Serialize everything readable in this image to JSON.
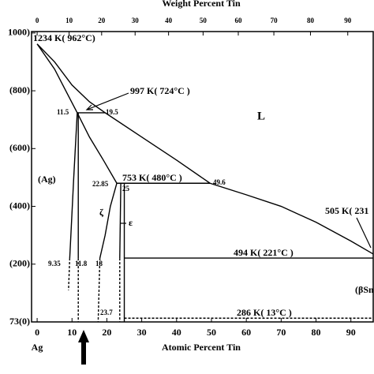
{
  "chart_data": {
    "type": "line",
    "title": "Weight Percent Tin",
    "xlabel": "Atomic Percent Tin",
    "xstart_label": "Ag",
    "xlim": [
      -1.6,
      96.4
    ],
    "ylim": [
      0,
      1005
    ],
    "xticks": [
      0,
      10,
      20,
      30,
      40,
      50,
      60,
      70,
      80,
      90
    ],
    "yticks": [
      {
        "value": 1000,
        "label": "1000)"
      },
      {
        "value": 800,
        "label": "(800)"
      },
      {
        "value": 600,
        "label": "(600)"
      },
      {
        "value": 400,
        "label": "(400)"
      },
      {
        "value": 200,
        "label": "(200)"
      },
      {
        "value": 0,
        "label": "73(0)"
      }
    ],
    "x2ticks": [
      {
        "value": 0,
        "label": "0"
      },
      {
        "value": 9.17,
        "label": "10"
      },
      {
        "value": 18.5,
        "label": "20"
      },
      {
        "value": 28.1,
        "label": "30"
      },
      {
        "value": 37.7,
        "label": "40"
      },
      {
        "value": 47.6,
        "label": "50"
      },
      {
        "value": 57.7,
        "label": "60"
      },
      {
        "value": 67.9,
        "label": "70"
      },
      {
        "value": 78.4,
        "label": "80"
      },
      {
        "value": 89.1,
        "label": "90"
      }
    ],
    "annotations": [
      "1234 K( 962°C)",
      "997 K( 724°C )",
      "19.5",
      "11.5",
      "L",
      "(Ag)",
      "22.85",
      "753 K( 480°C )",
      "25",
      "49.6",
      "505 K( 231",
      "ζ",
      "ε",
      "494 K( 221°C )",
      "9.35",
      "11.8",
      "18",
      "(βSn",
      "23.7",
      "286 K( 13°C )"
    ],
    "series": [
      {
        "color": "#000000",
        "dashed": false,
        "x": [
          0,
          5,
          10,
          15,
          19.5,
          30,
          40,
          49.6,
          60,
          70,
          80,
          90,
          96.4
        ],
        "values": [
          962,
          900,
          820,
          762,
          724,
          640,
          560,
          480,
          440,
          400,
          345,
          280,
          235
        ]
      },
      {
        "color": "#000000",
        "dashed": false,
        "x": [
          0,
          5,
          8,
          11.5
        ],
        "values": [
          962,
          875,
          805,
          724
        ]
      },
      {
        "color": "#000000",
        "dashed": false,
        "x": [
          11.5,
          10.5,
          9.8,
          9.35
        ],
        "values": [
          724,
          500,
          330,
          221
        ]
      },
      {
        "color": "#000000",
        "dashed": true,
        "x": [
          9.35,
          9
        ],
        "values": [
          221,
          110
        ]
      },
      {
        "color": "#000000",
        "dashed": false,
        "x": [
          11.8,
          11.8
        ],
        "values": [
          724,
          221
        ]
      },
      {
        "color": "#000000",
        "dashed": true,
        "x": [
          11.8,
          11.8
        ],
        "values": [
          221,
          0
        ]
      },
      {
        "color": "#000000",
        "dashed": false,
        "x": [
          11.5,
          15,
          19,
          22.85
        ],
        "values": [
          724,
          640,
          560,
          480
        ]
      },
      {
        "color": "#000000",
        "dashed": false,
        "x": [
          22.85,
          21,
          19.5,
          18
        ],
        "values": [
          480,
          400,
          300,
          221
        ]
      },
      {
        "color": "#000000",
        "dashed": true,
        "x": [
          18,
          17.5
        ],
        "values": [
          221,
          0
        ]
      },
      {
        "color": "#000000",
        "dashed": false,
        "x": [
          24,
          23.7
        ],
        "values": [
          480,
          221
        ]
      },
      {
        "color": "#000000",
        "dashed": true,
        "x": [
          23.7,
          23.7
        ],
        "values": [
          221,
          0
        ]
      },
      {
        "color": "#000000",
        "dashed": false,
        "x": [
          25,
          25
        ],
        "values": [
          480,
          0
        ]
      },
      {
        "color": "#000000",
        "dashed": false,
        "x": [
          11.5,
          19.5
        ],
        "values": [
          724,
          724
        ]
      },
      {
        "color": "#000000",
        "dashed": false,
        "x": [
          22.85,
          49.6
        ],
        "values": [
          480,
          480
        ]
      },
      {
        "color": "#000000",
        "dashed": false,
        "x": [
          25,
          96.4
        ],
        "values": [
          221,
          221
        ]
      },
      {
        "color": "#000000",
        "dashed": true,
        "x": [
          25,
          96.4
        ],
        "values": [
          13,
          13
        ]
      }
    ]
  }
}
